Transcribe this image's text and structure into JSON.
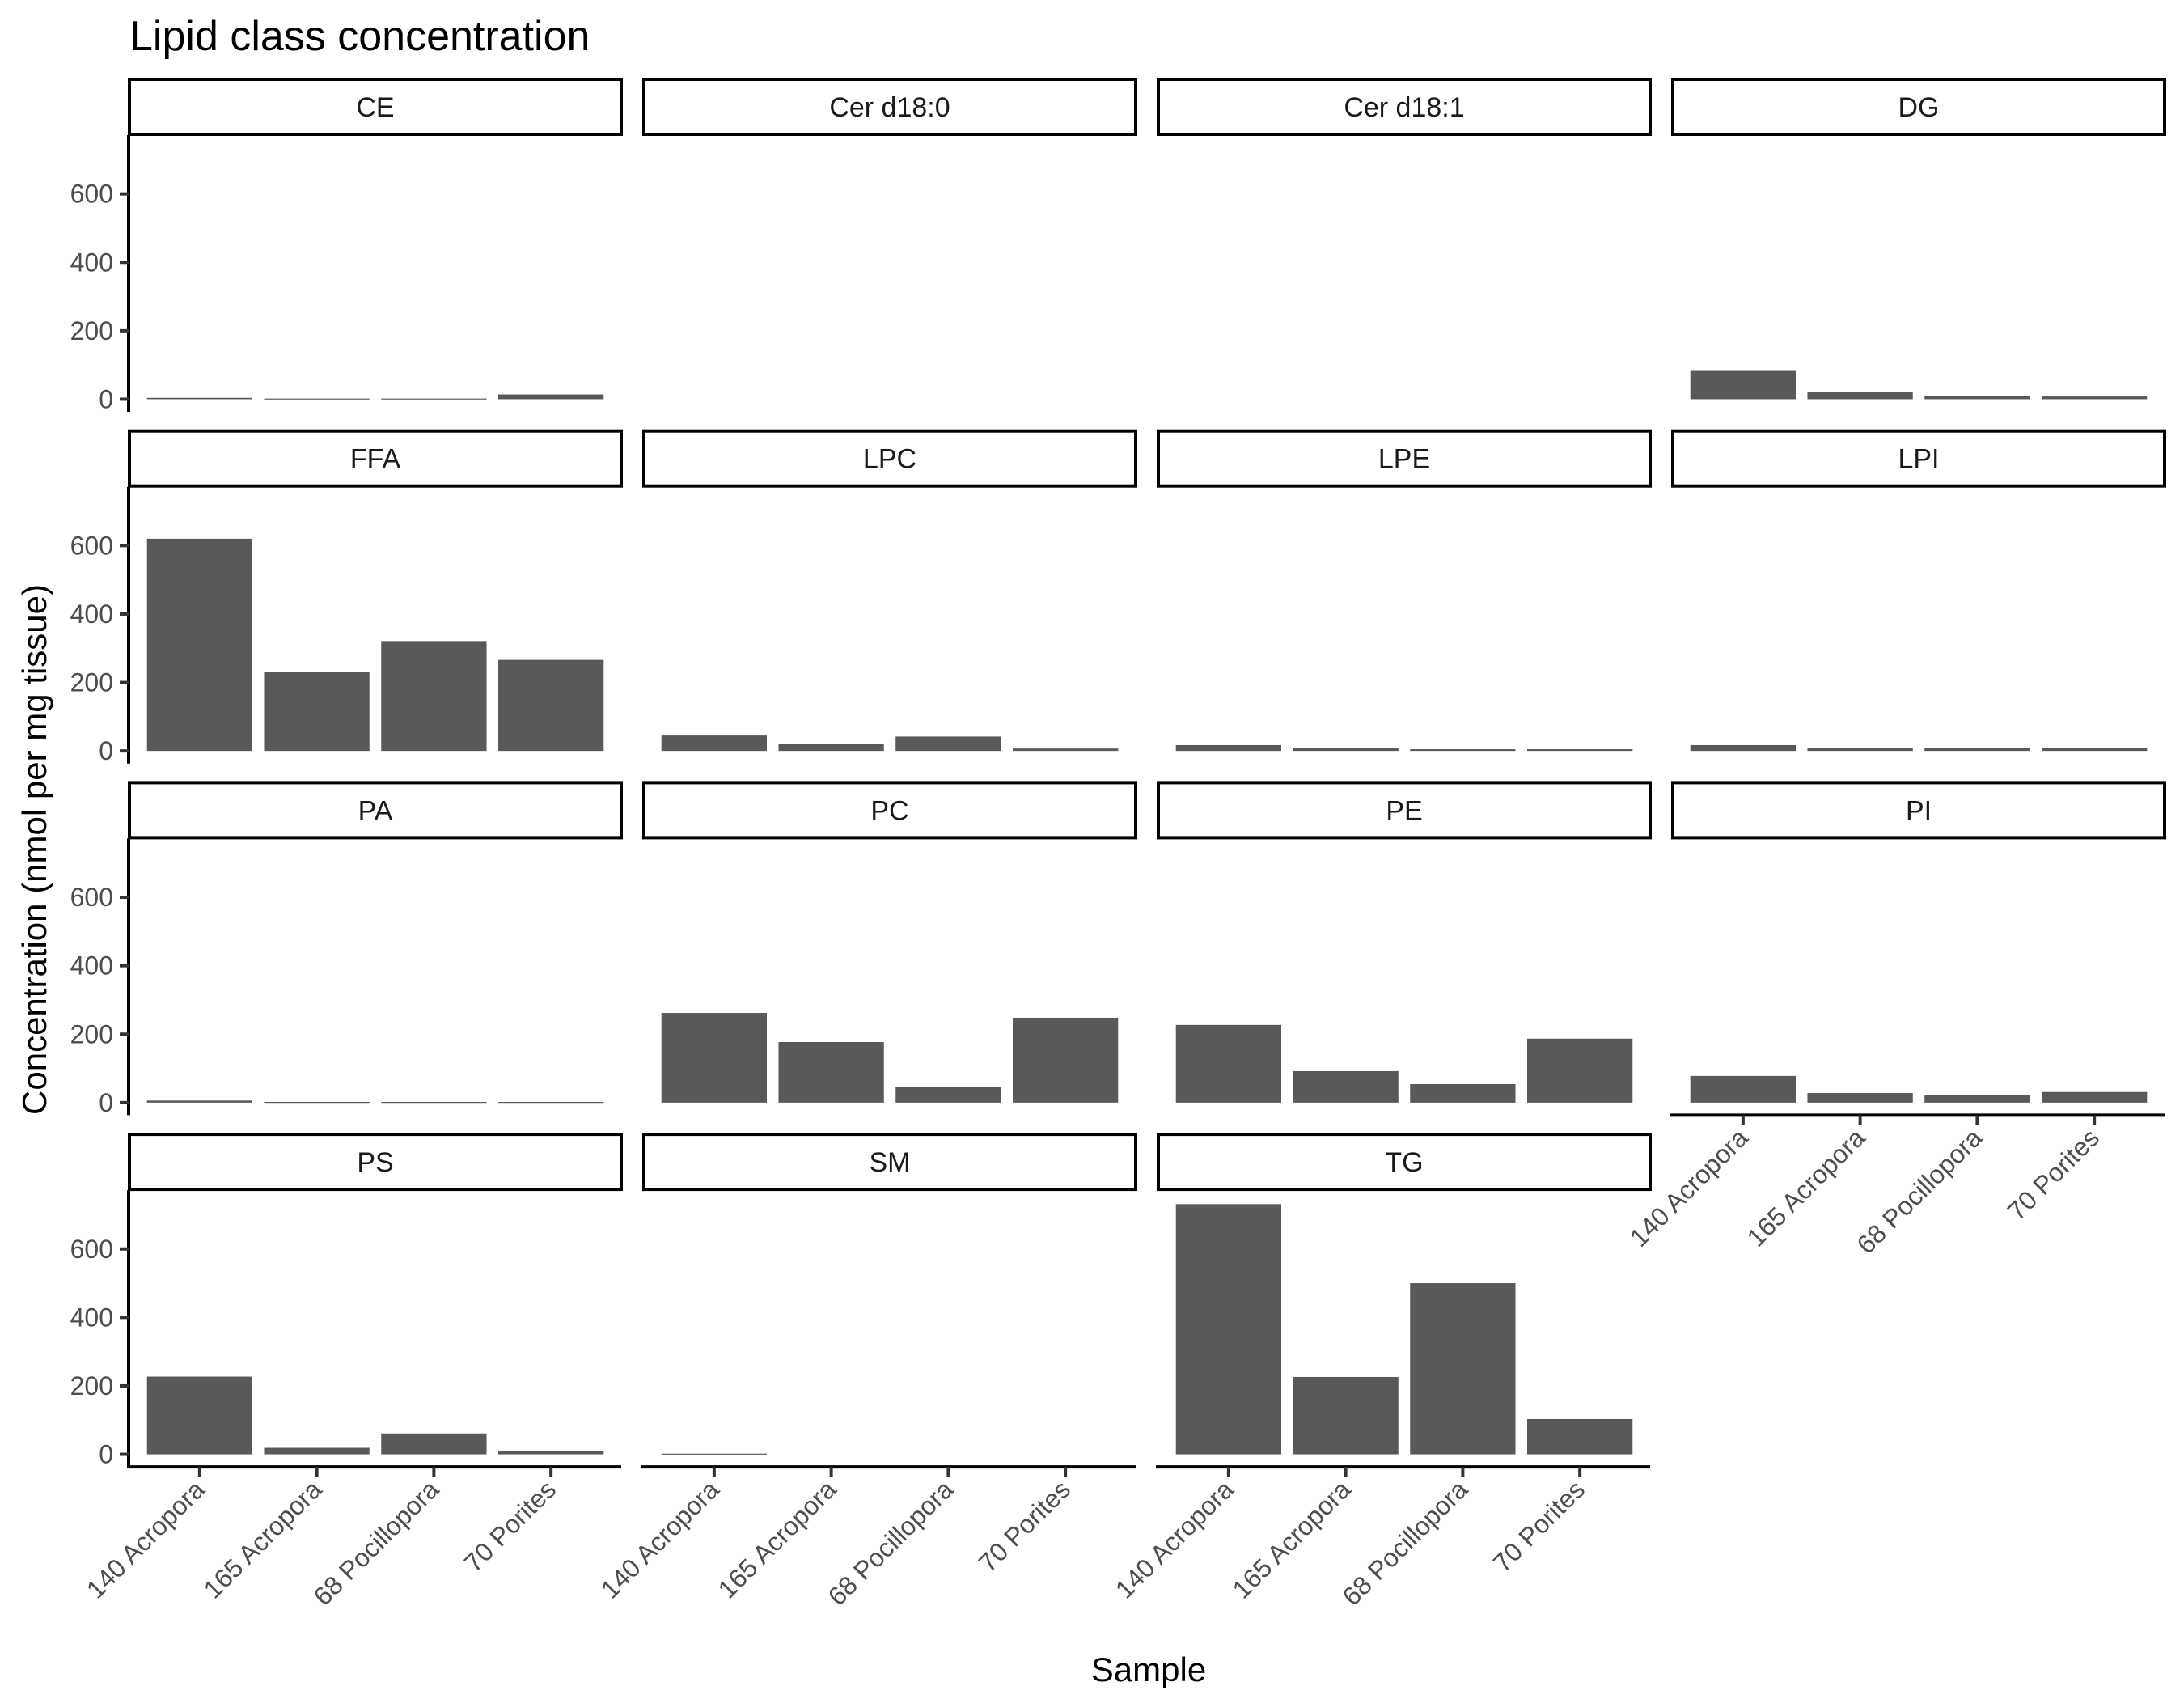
{
  "chart_data": {
    "type": "bar",
    "layout": "facet_wrap",
    "ncol": 4,
    "title": "Lipid class concentration",
    "xlabel": "Sample",
    "ylabel": "Concentration (nmol per mg tissue)",
    "ylim": [
      -36.75,
      771.75
    ],
    "yticks": [
      0,
      200,
      400,
      600
    ],
    "ytick_labels": [
      "0",
      "200",
      "400",
      "600"
    ],
    "categories": [
      "140 Acropora",
      "165 Acropora",
      "68 Pocillopora",
      "70 Porites"
    ],
    "bar_color": "#595959",
    "grid": false,
    "facets": [
      {
        "name": "CE",
        "values": [
          4,
          2,
          2,
          14
        ]
      },
      {
        "name": "Cer d18:0",
        "values": [
          0,
          0,
          0,
          0
        ]
      },
      {
        "name": "Cer d18:1",
        "values": [
          0,
          0,
          0,
          0
        ]
      },
      {
        "name": "DG",
        "values": [
          85,
          21,
          9,
          8
        ]
      },
      {
        "name": "FFA",
        "values": [
          620,
          231,
          321,
          266
        ]
      },
      {
        "name": "LPC",
        "values": [
          45,
          21,
          42,
          7
        ]
      },
      {
        "name": "LPE",
        "values": [
          17,
          9,
          5,
          5
        ]
      },
      {
        "name": "LPI",
        "values": [
          17,
          8,
          8,
          8
        ]
      },
      {
        "name": "PA",
        "values": [
          6,
          2,
          2,
          2
        ]
      },
      {
        "name": "PC",
        "values": [
          262,
          177,
          45,
          248
        ]
      },
      {
        "name": "PE",
        "values": [
          227,
          92,
          54,
          187
        ]
      },
      {
        "name": "PI",
        "values": [
          78,
          28,
          21,
          31
        ]
      },
      {
        "name": "PS",
        "values": [
          227,
          19,
          61,
          9
        ]
      },
      {
        "name": "SM",
        "values": [
          2,
          0,
          0,
          0
        ]
      },
      {
        "name": "TG",
        "values": [
          731,
          226,
          500,
          103
        ]
      }
    ]
  }
}
